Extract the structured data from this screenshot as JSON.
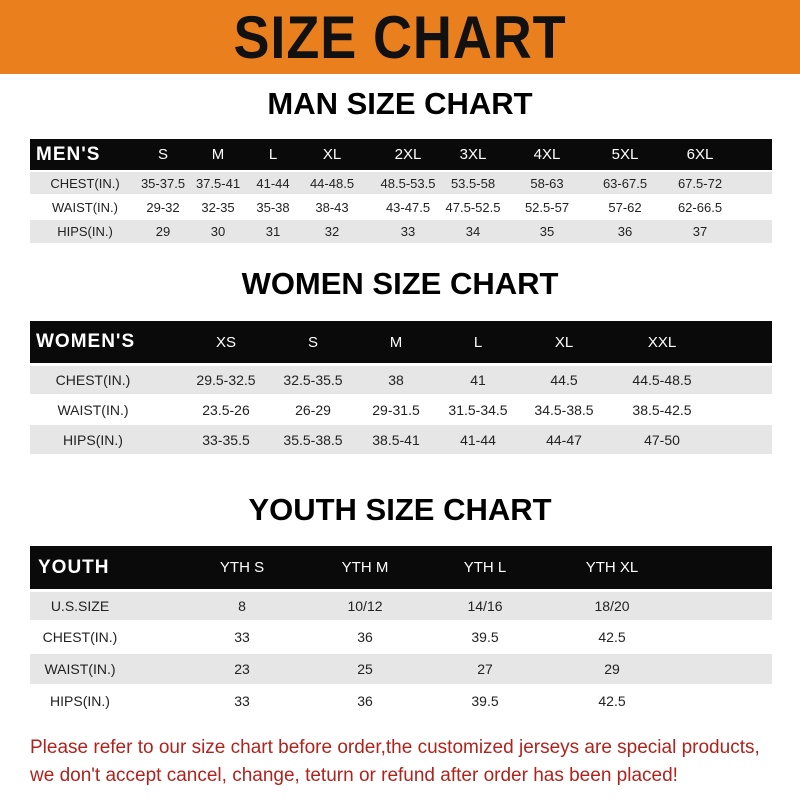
{
  "banner": {
    "title": "SIZE CHART",
    "color": "#ea7f1d"
  },
  "men": {
    "title": "MAN SIZE CHART",
    "header": [
      "MEN'S",
      "S",
      "M",
      "L",
      "XL",
      "2XL",
      "3XL",
      "4XL",
      "5XL",
      "6XL"
    ],
    "rows": [
      [
        "CHEST(IN.)",
        "35-37.5",
        "37.5-41",
        "41-44",
        "44-48.5",
        "48.5-53.5",
        "53.5-58",
        "58-63",
        "63-67.5",
        "67.5-72"
      ],
      [
        "WAIST(IN.)",
        "29-32",
        "32-35",
        "35-38",
        "38-43",
        "43-47.5",
        "47.5-52.5",
        "52.5-57",
        "57-62",
        "62-66.5"
      ],
      [
        "HIPS(IN.)",
        "29",
        "30",
        "31",
        "32",
        "33",
        "34",
        "35",
        "36",
        "37"
      ]
    ]
  },
  "women": {
    "title": "WOMEN SIZE CHART",
    "header": [
      "WOMEN'S",
      "XS",
      "S",
      "M",
      "L",
      "XL",
      "XXL"
    ],
    "rows": [
      [
        "CHEST(IN.)",
        "29.5-32.5",
        "32.5-35.5",
        "38",
        "41",
        "44.5",
        "44.5-48.5"
      ],
      [
        "WAIST(IN.)",
        "23.5-26",
        "26-29",
        "29-31.5",
        "31.5-34.5",
        "34.5-38.5",
        "38.5-42.5"
      ],
      [
        "HIPS(IN.)",
        "33-35.5",
        "35.5-38.5",
        "38.5-41",
        "41-44",
        "44-47",
        "47-50"
      ]
    ]
  },
  "youth": {
    "title": "YOUTH SIZE CHART",
    "header": [
      "YOUTH",
      "YTH S",
      "YTH M",
      "YTH L",
      "YTH XL"
    ],
    "rows": [
      [
        "U.S.SIZE",
        "8",
        "10/12",
        "14/16",
        "18/20"
      ],
      [
        "CHEST(IN.)",
        "33",
        "36",
        "39.5",
        "42.5"
      ],
      [
        "WAIST(IN.)",
        "23",
        "25",
        "27",
        "29"
      ],
      [
        "HIPS(IN.)",
        "33",
        "36",
        "39.5",
        "42.5"
      ]
    ]
  },
  "notice": {
    "line1": "Please refer to our size chart before order,the customized jerseys are special products,",
    "line2": "we don't accept cancel, change, teturn or refund after order has been placed!",
    "color": "#b0231d"
  }
}
